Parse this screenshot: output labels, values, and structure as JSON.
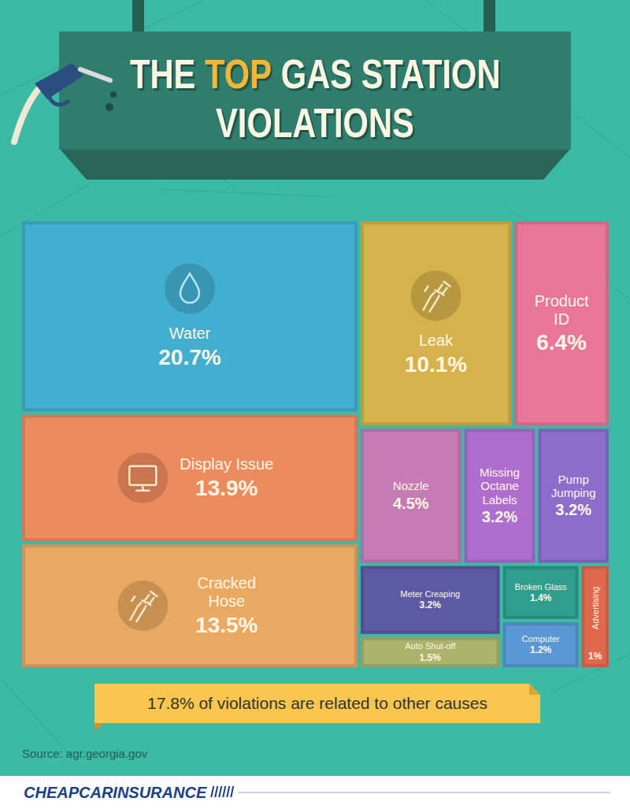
{
  "chart_data": {
    "type": "treemap",
    "title": "THE TOP GAS STATION VIOLATIONS",
    "categories": [
      "Water",
      "Display Issue",
      "Cracked Hose",
      "Leak",
      "Product ID",
      "Nozzle",
      "Missing Octane Labels",
      "Pump Jumping",
      "Meter Creaping",
      "Broken Glass",
      "Auto Shut-off",
      "Computer",
      "Advertising"
    ],
    "values": [
      20.7,
      13.9,
      13.5,
      10.1,
      6.4,
      4.5,
      3.2,
      3.2,
      3.2,
      1.4,
      1.5,
      1.2,
      1
    ],
    "value_labels": [
      "20.7%",
      "13.9%",
      "13.5%",
      "10.1%",
      "6.4%",
      "4.5%",
      "3.2%",
      "3.2%",
      "3.2%",
      "1.4%",
      "1.5%",
      "1.2%",
      "1%"
    ],
    "colors": [
      "#43afd0",
      "#ec8b5e",
      "#e9a962",
      "#d5b24b",
      "#e8769a",
      "#c77bb6",
      "#ae6dcf",
      "#8d6dcc",
      "#5c5aa3",
      "#2f9e8f",
      "#abb36d",
      "#5b97d5",
      "#e0684d"
    ],
    "data_labels": true,
    "annotation": "17.8% of violations are related to other causes",
    "source": "Source: agr.georgia.gov",
    "logo": "CHEAPCARINSURANCE"
  }
}
